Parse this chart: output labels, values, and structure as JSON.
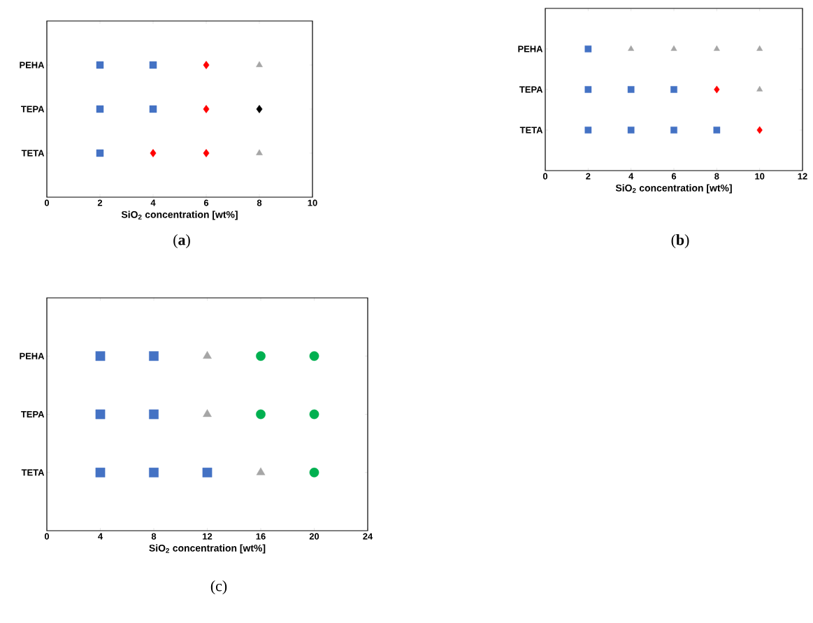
{
  "chart_data": [
    {
      "type": "scatter",
      "orientation": "horizontal",
      "categories": [
        "PEHA",
        "TEPA",
        "TETA"
      ],
      "xlabel": "SiO$_{2}$ concentration [wt%]",
      "xlim": [
        0,
        10
      ],
      "xticks": [
        0,
        2,
        4,
        6,
        8,
        10
      ],
      "grid": false,
      "annotations": [
        "(**a**)"
      ],
      "series": [
        {
          "color": "#4472c4",
          "marker": "square",
          "x": [
            "TETA",
            "TEPA",
            "PEHA",
            "TEPA",
            "PEHA"
          ],
          "values": [
            2,
            2,
            2,
            4,
            4
          ]
        },
        {
          "color": "#ff0000",
          "marker": "diamond",
          "x": [
            "TETA",
            "TETA",
            "TEPA",
            "PEHA"
          ],
          "values": [
            4,
            6,
            6,
            6
          ]
        },
        {
          "color": "#a6a6a6",
          "marker": "triangle",
          "x": [
            "TETA",
            "PEHA"
          ],
          "values": [
            8,
            8
          ]
        },
        {
          "color": "#000000",
          "marker": "diamond",
          "x": [
            "TEPA"
          ],
          "values": [
            8
          ]
        }
      ]
    },
    {
      "type": "scatter",
      "orientation": "horizontal",
      "categories": [
        "PEHA",
        "TEPA",
        "TETA"
      ],
      "xlabel": "SiO$_{2}$ concentration [wt%]",
      "xlim": [
        0,
        12
      ],
      "xticks": [
        0,
        2,
        4,
        6,
        8,
        10,
        12
      ],
      "grid": false,
      "annotations": [
        "(**b**)"
      ],
      "series": [
        {
          "color": "#4472c4",
          "marker": "square",
          "x": [
            "TETA",
            "TETA",
            "TETA",
            "TETA",
            "TEPA",
            "TEPA",
            "TEPA",
            "PEHA"
          ],
          "values": [
            2,
            4,
            6,
            8,
            2,
            4,
            6,
            2
          ]
        },
        {
          "color": "#ff0000",
          "marker": "diamond",
          "x": [
            "TETA",
            "TEPA"
          ],
          "values": [
            10,
            8
          ]
        },
        {
          "color": "#a6a6a6",
          "marker": "triangle",
          "x": [
            "TEPA",
            "PEHA",
            "PEHA",
            "PEHA",
            "PEHA"
          ],
          "values": [
            10,
            4,
            6,
            8,
            10
          ]
        }
      ]
    },
    {
      "type": "scatter",
      "orientation": "horizontal",
      "categories": [
        "PEHA",
        "TEPA",
        "TETA"
      ],
      "xlabel": "SiO$_{2}$ concentration [wt%]",
      "xlim": [
        0,
        24
      ],
      "xticks": [
        0,
        4,
        8,
        12,
        16,
        20,
        24
      ],
      "grid": false,
      "annotations": [
        "(c)"
      ],
      "series": [
        {
          "color": "#4472c4",
          "marker": "square",
          "x": [
            "TETA",
            "TETA",
            "TETA",
            "TEPA",
            "TEPA",
            "PEHA",
            "PEHA"
          ],
          "values": [
            4,
            8,
            12,
            4,
            8,
            4,
            8
          ]
        },
        {
          "color": "#a6a6a6",
          "marker": "triangle",
          "x": [
            "TETA",
            "TEPA",
            "PEHA"
          ],
          "values": [
            16,
            12,
            12
          ]
        },
        {
          "color": "#00b050",
          "marker": "circle",
          "x": [
            "TETA",
            "TEPA",
            "PEHA",
            "TEPA",
            "PEHA"
          ],
          "values": [
            20,
            16,
            16,
            20,
            20
          ]
        }
      ]
    }
  ]
}
